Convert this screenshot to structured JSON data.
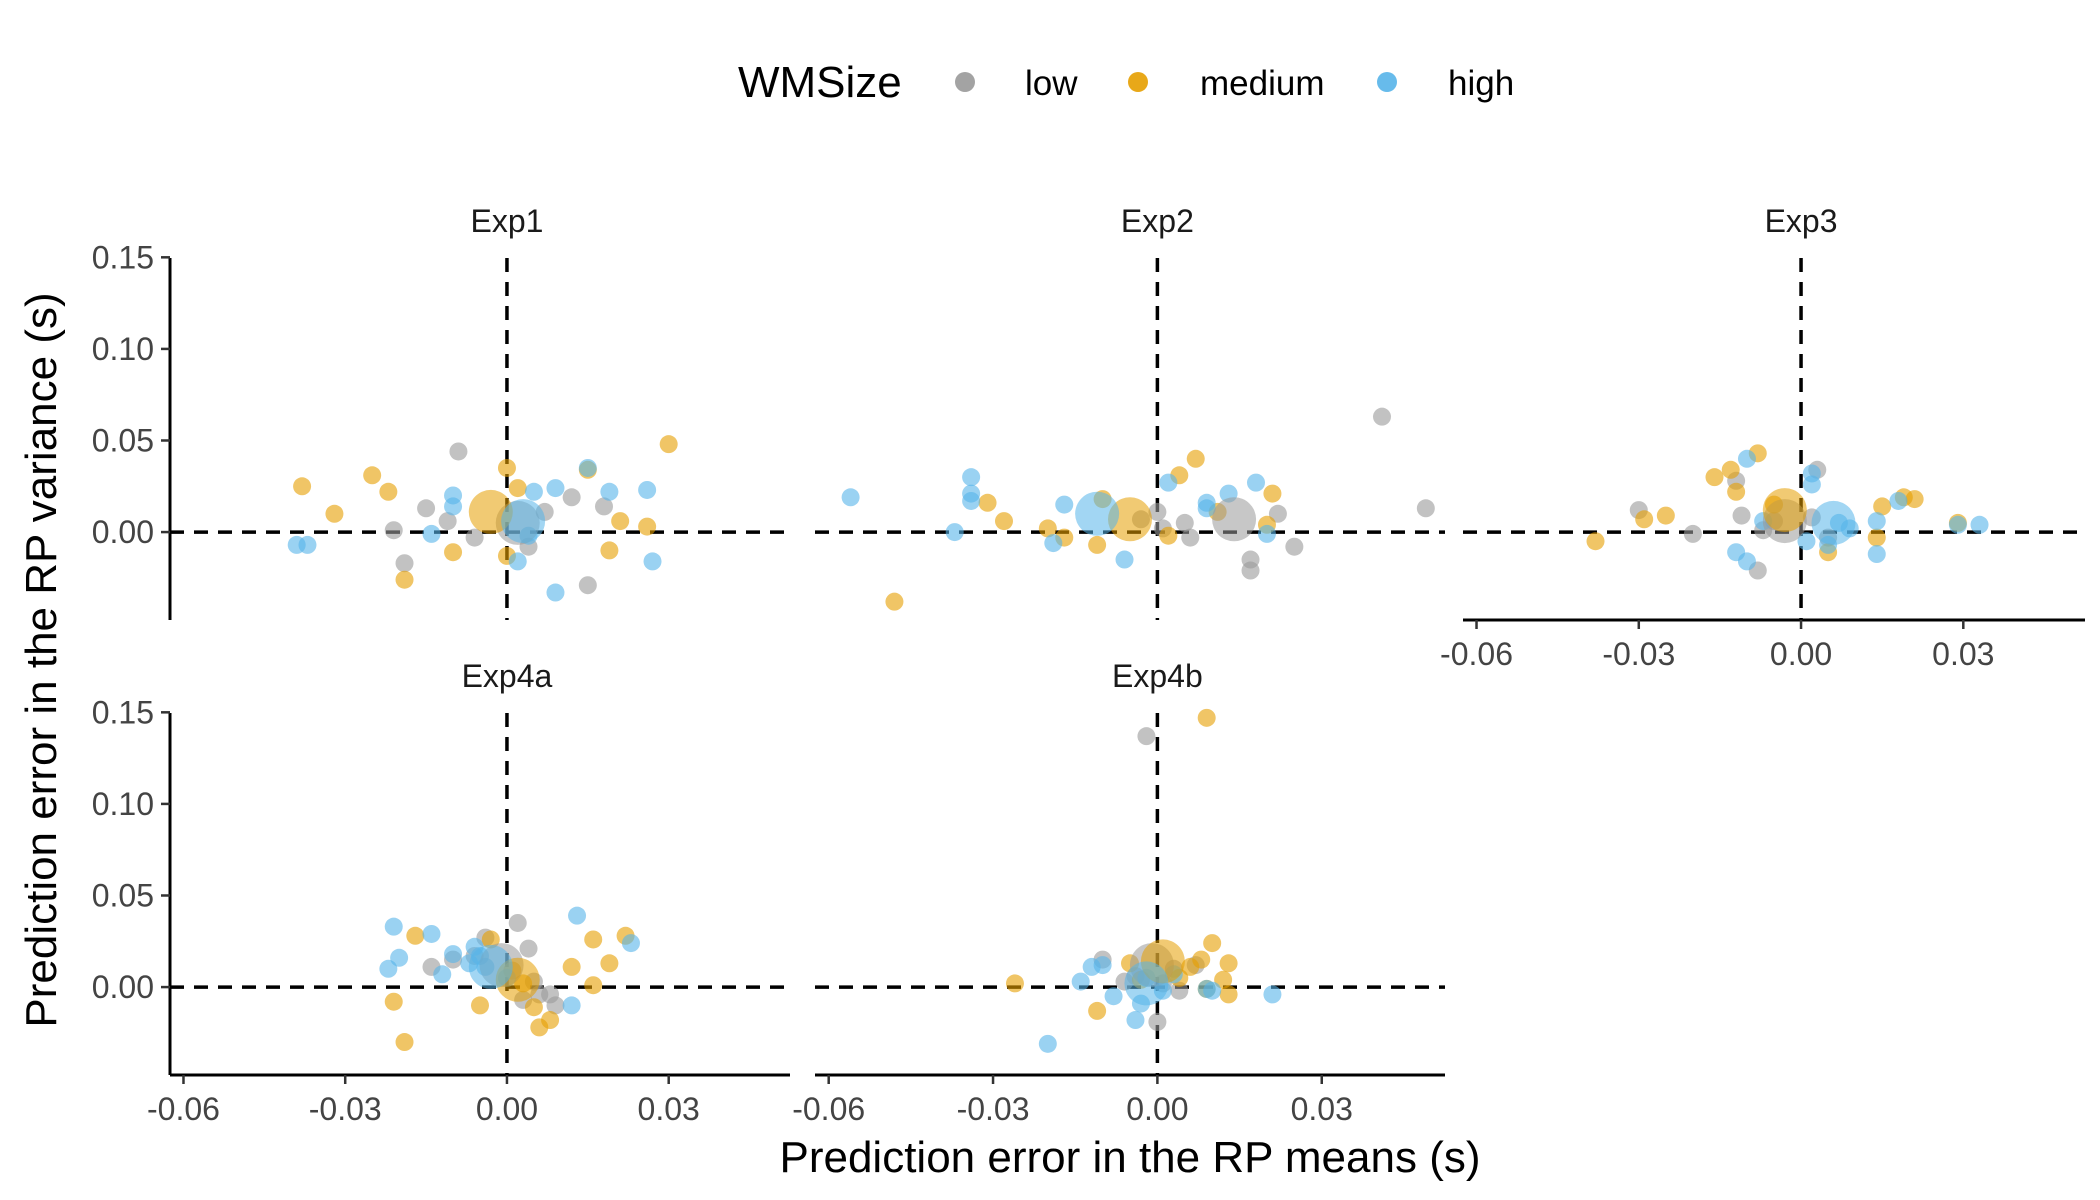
{
  "chart_data": {
    "type": "scatter",
    "xlabel": "Prediction error in the RP means (s)",
    "ylabel": "Prediction error in the RP variance (s)",
    "xlim": [
      -0.0625,
      0.0525
    ],
    "ylim": [
      -0.048,
      0.154
    ],
    "x_ticks": [
      -0.06,
      -0.03,
      0.0,
      0.03
    ],
    "x_tick_labels": [
      "-0.06",
      "-0.03",
      "0.00",
      "0.03"
    ],
    "y_ticks": [
      0.0,
      0.05,
      0.1,
      0.15
    ],
    "y_tick_labels": [
      "0.00",
      "0.05",
      "0.10",
      "0.15"
    ],
    "reference_lines": {
      "x": 0,
      "y": 0,
      "style": "dashed"
    },
    "legend": {
      "title": "WMSize",
      "position": "top",
      "entries": [
        {
          "name": "low",
          "color": "#999999"
        },
        {
          "name": "medium",
          "color": "#E69F00"
        },
        {
          "name": "high",
          "color": "#56B4E9"
        }
      ]
    },
    "panels": [
      {
        "title": "Exp1",
        "series": [
          {
            "name": "low",
            "points": [
              [
                -0.009,
                0.044
              ],
              [
                -0.015,
                0.013
              ],
              [
                -0.021,
                0.001
              ],
              [
                -0.019,
                -0.017
              ],
              [
                -0.011,
                0.006
              ],
              [
                -0.006,
                -0.003
              ],
              [
                0.004,
                -0.008
              ],
              [
                0.007,
                0.011
              ],
              [
                0.012,
                0.019
              ],
              [
                0.015,
                -0.029
              ],
              [
                0.018,
                0.014
              ]
            ],
            "mean": [
              0.002,
              0.005
            ]
          },
          {
            "name": "medium",
            "points": [
              [
                -0.038,
                0.025
              ],
              [
                -0.032,
                0.01
              ],
              [
                -0.025,
                0.031
              ],
              [
                -0.022,
                0.022
              ],
              [
                -0.019,
                -0.026
              ],
              [
                -0.01,
                -0.011
              ],
              [
                0.0,
                0.035
              ],
              [
                0.002,
                0.024
              ],
              [
                0.015,
                0.034
              ],
              [
                0.019,
                -0.01
              ],
              [
                0.021,
                0.006
              ],
              [
                0.026,
                0.003
              ],
              [
                0.03,
                0.048
              ],
              [
                0.0,
                -0.013
              ]
            ],
            "mean": [
              -0.003,
              0.011
            ]
          },
          {
            "name": "high",
            "points": [
              [
                -0.039,
                -0.007
              ],
              [
                -0.037,
                -0.007
              ],
              [
                -0.014,
                -0.001
              ],
              [
                -0.01,
                0.02
              ],
              [
                -0.01,
                0.014
              ],
              [
                0.002,
                -0.016
              ],
              [
                0.005,
                0.022
              ],
              [
                0.009,
                -0.033
              ],
              [
                0.009,
                0.024
              ],
              [
                0.015,
                0.035
              ],
              [
                0.019,
                0.022
              ],
              [
                0.026,
                0.023
              ],
              [
                0.027,
                -0.016
              ],
              [
                0.004,
                -0.002
              ]
            ],
            "mean": [
              0.003,
              0.006
            ]
          }
        ]
      },
      {
        "title": "Exp2",
        "series": [
          {
            "name": "low",
            "points": [
              [
                0.041,
                0.063
              ],
              [
                0.049,
                0.013
              ],
              [
                0.025,
                -0.008
              ],
              [
                0.022,
                0.01
              ],
              [
                0.017,
                -0.015
              ],
              [
                0.017,
                -0.021
              ],
              [
                0.006,
                -0.003
              ],
              [
                0.005,
                0.005
              ],
              [
                0.001,
                0.002
              ],
              [
                0.0,
                0.011
              ],
              [
                -0.003,
                0.007
              ]
            ],
            "mean": [
              0.014,
              0.007
            ]
          },
          {
            "name": "medium",
            "points": [
              [
                -0.048,
                -0.038
              ],
              [
                -0.031,
                0.016
              ],
              [
                -0.028,
                0.006
              ],
              [
                -0.02,
                0.002
              ],
              [
                -0.017,
                -0.003
              ],
              [
                -0.011,
                -0.007
              ],
              [
                -0.01,
                0.018
              ],
              [
                0.004,
                0.031
              ],
              [
                0.007,
                0.04
              ],
              [
                0.011,
                0.011
              ],
              [
                0.021,
                0.021
              ],
              [
                0.02,
                0.004
              ],
              [
                0.002,
                -0.002
              ]
            ],
            "mean": [
              -0.005,
              0.007
            ]
          },
          {
            "name": "high",
            "points": [
              [
                -0.056,
                0.019
              ],
              [
                -0.034,
                0.03
              ],
              [
                -0.034,
                0.021
              ],
              [
                -0.034,
                0.017
              ],
              [
                -0.037,
                0.0
              ],
              [
                -0.019,
                -0.006
              ],
              [
                -0.017,
                0.015
              ],
              [
                -0.006,
                -0.015
              ],
              [
                0.002,
                0.027
              ],
              [
                0.009,
                0.013
              ],
              [
                0.013,
                0.021
              ],
              [
                0.018,
                0.027
              ],
              [
                0.02,
                -0.001
              ],
              [
                0.009,
                0.016
              ]
            ],
            "mean": [
              -0.011,
              0.01
            ]
          }
        ]
      },
      {
        "title": "Exp3",
        "series": [
          {
            "name": "low",
            "points": [
              [
                -0.03,
                0.012
              ],
              [
                -0.02,
                -0.001
              ],
              [
                -0.012,
                0.028
              ],
              [
                -0.011,
                0.009
              ],
              [
                -0.008,
                -0.021
              ],
              [
                -0.007,
                0.001
              ],
              [
                -0.005,
                0.006
              ],
              [
                0.002,
                0.008
              ],
              [
                0.003,
                0.034
              ],
              [
                0.005,
                -0.003
              ]
            ],
            "mean": [
              -0.003,
              0.006
            ]
          },
          {
            "name": "medium",
            "points": [
              [
                -0.038,
                -0.005
              ],
              [
                -0.029,
                0.007
              ],
              [
                -0.025,
                0.009
              ],
              [
                -0.016,
                0.03
              ],
              [
                -0.013,
                0.034
              ],
              [
                -0.012,
                0.022
              ],
              [
                -0.008,
                0.043
              ],
              [
                -0.005,
                0.015
              ],
              [
                0.005,
                -0.011
              ],
              [
                0.014,
                -0.003
              ],
              [
                0.019,
                0.019
              ],
              [
                0.021,
                0.018
              ],
              [
                0.029,
                0.005
              ],
              [
                0.015,
                0.014
              ]
            ],
            "mean": [
              -0.003,
              0.012
            ]
          },
          {
            "name": "high",
            "points": [
              [
                -0.012,
                -0.011
              ],
              [
                -0.01,
                0.04
              ],
              [
                -0.01,
                -0.016
              ],
              [
                -0.007,
                0.006
              ],
              [
                0.001,
                -0.005
              ],
              [
                0.002,
                0.026
              ],
              [
                0.002,
                0.032
              ],
              [
                0.005,
                -0.007
              ],
              [
                0.007,
                0.005
              ],
              [
                0.009,
                0.002
              ],
              [
                0.014,
                0.006
              ],
              [
                0.014,
                -0.012
              ],
              [
                0.018,
                0.017
              ],
              [
                0.029,
                0.004
              ],
              [
                0.033,
                0.004
              ]
            ],
            "mean": [
              0.006,
              0.005
            ]
          }
        ]
      },
      {
        "title": "Exp4a",
        "series": [
          {
            "name": "low",
            "points": [
              [
                -0.014,
                0.011
              ],
              [
                -0.01,
                0.015
              ],
              [
                -0.006,
                0.017
              ],
              [
                -0.004,
                0.027
              ],
              [
                0.002,
                0.035
              ],
              [
                0.004,
                0.021
              ],
              [
                0.005,
                0.003
              ],
              [
                0.006,
                -0.004
              ],
              [
                0.008,
                -0.004
              ],
              [
                0.009,
                -0.01
              ],
              [
                0.003,
                -0.007
              ]
            ],
            "mean": [
              -0.001,
              0.012
            ]
          },
          {
            "name": "medium",
            "points": [
              [
                -0.021,
                -0.008
              ],
              [
                -0.019,
                -0.03
              ],
              [
                -0.017,
                0.028
              ],
              [
                -0.005,
                -0.01
              ],
              [
                -0.003,
                0.026
              ],
              [
                0.003,
                0.002
              ],
              [
                0.005,
                -0.011
              ],
              [
                0.006,
                -0.022
              ],
              [
                0.008,
                -0.018
              ],
              [
                0.012,
                0.011
              ],
              [
                0.016,
                0.026
              ],
              [
                0.019,
                0.013
              ],
              [
                0.022,
                0.028
              ],
              [
                0.016,
                0.001
              ],
              [
                0.001,
                0.009
              ]
            ],
            "mean": [
              0.002,
              0.004
            ]
          },
          {
            "name": "high",
            "points": [
              [
                -0.022,
                0.01
              ],
              [
                -0.021,
                0.033
              ],
              [
                -0.02,
                0.016
              ],
              [
                -0.014,
                0.029
              ],
              [
                -0.012,
                0.007
              ],
              [
                -0.01,
                0.018
              ],
              [
                -0.007,
                0.013
              ],
              [
                -0.006,
                0.022
              ],
              [
                -0.005,
                0.017
              ],
              [
                -0.004,
                0.011
              ],
              [
                0.0,
                0.005
              ],
              [
                0.012,
                -0.01
              ],
              [
                0.013,
                0.039
              ],
              [
                0.023,
                0.024
              ]
            ],
            "mean": [
              -0.003,
              0.011
            ]
          }
        ]
      },
      {
        "title": "Exp4b",
        "series": [
          {
            "name": "low",
            "points": [
              [
                -0.002,
                0.137
              ],
              [
                -0.01,
                0.015
              ],
              [
                -0.006,
                0.003
              ],
              [
                0.0,
                -0.019
              ],
              [
                0.003,
                0.01
              ],
              [
                0.004,
                -0.002
              ],
              [
                0.007,
                0.012
              ],
              [
                -0.004,
                0.006
              ],
              [
                0.001,
                0.002
              ]
            ],
            "mean": [
              -0.001,
              0.012
            ]
          },
          {
            "name": "medium",
            "points": [
              [
                0.009,
                0.147
              ],
              [
                -0.026,
                0.002
              ],
              [
                -0.011,
                -0.013
              ],
              [
                -0.005,
                0.013
              ],
              [
                -0.003,
                0.004
              ],
              [
                0.004,
                0.005
              ],
              [
                0.008,
                0.015
              ],
              [
                0.01,
                0.024
              ],
              [
                0.012,
                0.004
              ],
              [
                0.013,
                0.013
              ],
              [
                0.013,
                -0.004
              ],
              [
                0.009,
                -0.001
              ],
              [
                0.006,
                0.011
              ]
            ],
            "mean": [
              0.001,
              0.014
            ]
          },
          {
            "name": "high",
            "points": [
              [
                -0.02,
                -0.031
              ],
              [
                -0.014,
                0.003
              ],
              [
                -0.012,
                0.011
              ],
              [
                -0.01,
                0.012
              ],
              [
                -0.008,
                -0.005
              ],
              [
                -0.004,
                -0.018
              ],
              [
                -0.003,
                -0.009
              ],
              [
                -0.002,
                0.005
              ],
              [
                0.001,
                -0.002
              ],
              [
                0.009,
                -0.001
              ],
              [
                0.01,
                -0.002
              ],
              [
                0.021,
                -0.004
              ],
              [
                0.003,
                0.007
              ]
            ],
            "mean": [
              -0.002,
              0.002
            ]
          }
        ]
      }
    ]
  }
}
